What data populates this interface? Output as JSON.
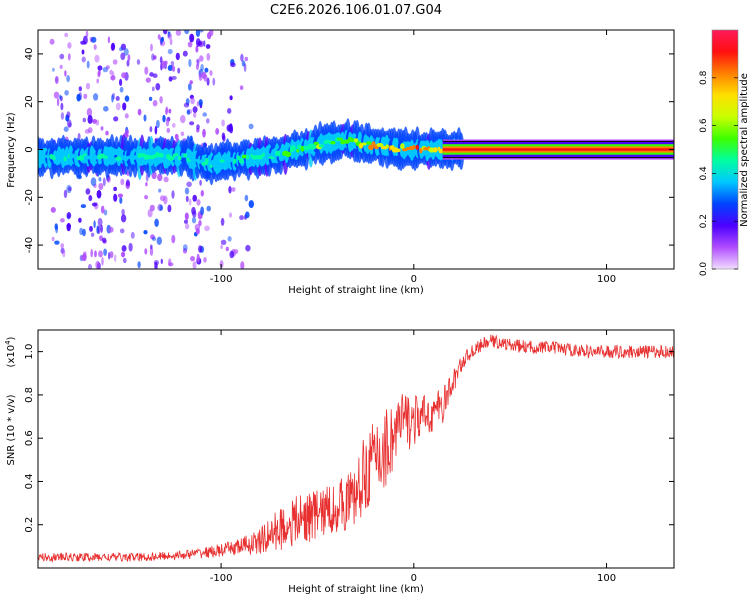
{
  "title": "C2E6.2026.106.01.07.G04",
  "chart_data": [
    {
      "type": "heatmap",
      "title": "",
      "xlabel": "Height of straight line (km)",
      "ylabel": "Frequency (Hz)",
      "xlim": [
        -195,
        135
      ],
      "ylim": [
        -50,
        50
      ],
      "xticks": [
        -100,
        0,
        100
      ],
      "yticks": [
        -40,
        -20,
        0,
        20,
        40
      ],
      "xtick_labels": [
        "-100",
        "0",
        "100"
      ],
      "ytick_labels": [
        "-40",
        "-20",
        "0",
        "20",
        "40"
      ],
      "colorbar": {
        "label": "Normalized spectral amplitude",
        "range": [
          0,
          1
        ],
        "ticks": [
          0.0,
          0.2,
          0.4,
          0.6,
          0.8
        ],
        "tick_labels": [
          "0.0",
          "0.2",
          "0.4",
          "0.6",
          "0.8"
        ],
        "colors": [
          "#f2ddff",
          "#b04dff",
          "#4b00ff",
          "#0044ff",
          "#00c8ff",
          "#00ffa0",
          "#3cff00",
          "#c8ff00",
          "#ffe000",
          "#ff8000",
          "#ff1010",
          "#ff1a5a"
        ]
      },
      "ridge": {
        "description_x": [
          -195,
          -180,
          -160,
          -140,
          -120,
          -105,
          -90,
          -70,
          -50,
          -35,
          -25,
          -15,
          0,
          10,
          20,
          135
        ],
        "frequency_hz": [
          -3,
          -3,
          -3,
          -3,
          -3,
          -6,
          -4,
          -2,
          2,
          4,
          2,
          1,
          0,
          0,
          0,
          0
        ],
        "peak_amplitude": [
          0.45,
          0.5,
          0.45,
          0.45,
          0.5,
          0.5,
          0.5,
          0.55,
          0.6,
          0.6,
          0.8,
          0.85,
          0.9,
          0.9,
          1.0,
          1.0
        ]
      }
    },
    {
      "type": "line",
      "title": "",
      "xlabel": "Height of straight line (km)",
      "ylabel": "SNR (10 * v/v)",
      "y_multiplier": "(x10⁴)",
      "y_multiplier_base": "(x10",
      "y_multiplier_exp": "4",
      "y_multiplier_close": ")",
      "xlim": [
        -195,
        135
      ],
      "ylim": [
        0,
        1.1
      ],
      "xticks": [
        -100,
        0,
        100
      ],
      "yticks": [
        0.2,
        0.4,
        0.6,
        0.8,
        1.0
      ],
      "xtick_labels": [
        "-100",
        "0",
        "100"
      ],
      "ytick_labels": [
        "0.2",
        "0.4",
        "0.6",
        "0.8",
        "1.0"
      ],
      "series": [
        {
          "name": "SNR",
          "color": "#e83030",
          "x": [
            -195,
            -180,
            -160,
            -140,
            -120,
            -100,
            -90,
            -80,
            -70,
            -60,
            -50,
            -40,
            -30,
            -25,
            -20,
            -15,
            -10,
            -5,
            0,
            5,
            10,
            15,
            20,
            25,
            30,
            35,
            40,
            50,
            60,
            70,
            80,
            90,
            100,
            110,
            120,
            135
          ],
          "y": [
            0.05,
            0.05,
            0.05,
            0.05,
            0.06,
            0.08,
            0.1,
            0.12,
            0.18,
            0.22,
            0.25,
            0.28,
            0.33,
            0.45,
            0.5,
            0.55,
            0.62,
            0.68,
            0.68,
            0.7,
            0.72,
            0.75,
            0.85,
            0.95,
            1.0,
            1.03,
            1.05,
            1.03,
            1.02,
            1.02,
            1.01,
            1.0,
            1.0,
            1.0,
            1.0,
            1.0
          ],
          "noise_amplitude": [
            0.02,
            0.02,
            0.02,
            0.02,
            0.02,
            0.03,
            0.04,
            0.06,
            0.1,
            0.12,
            0.12,
            0.12,
            0.15,
            0.18,
            0.2,
            0.2,
            0.18,
            0.15,
            0.12,
            0.1,
            0.1,
            0.08,
            0.06,
            0.04,
            0.03,
            0.03,
            0.03,
            0.03,
            0.03,
            0.03,
            0.03,
            0.03,
            0.03,
            0.03,
            0.03,
            0.03
          ]
        }
      ]
    }
  ]
}
